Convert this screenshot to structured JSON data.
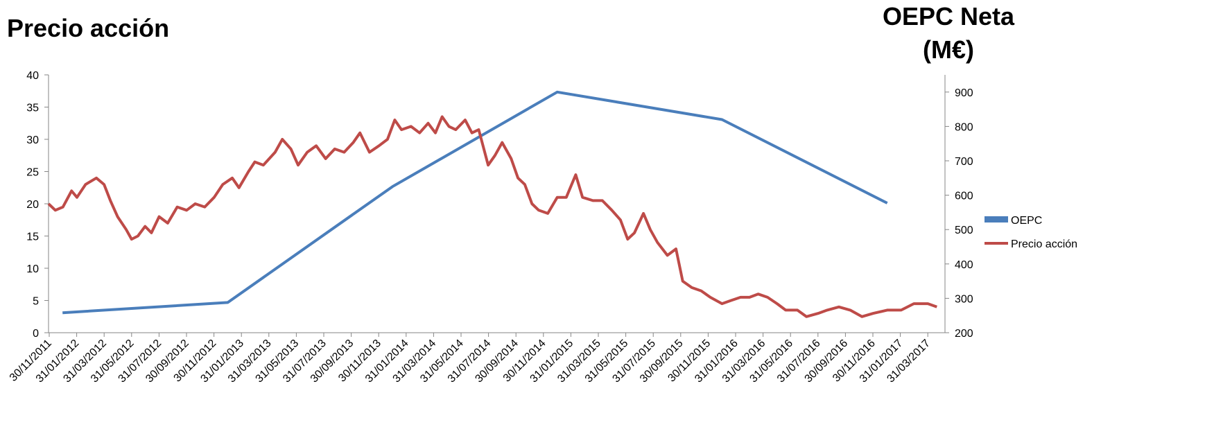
{
  "titles": {
    "left": "Precio acción",
    "right_line1": "OEPC Neta",
    "right_line2": "(M€)"
  },
  "chart_data": {
    "type": "line",
    "grid": false,
    "legend_position": "right",
    "y_left": {
      "range": [
        0,
        40
      ],
      "ticks": [
        0,
        5,
        10,
        15,
        20,
        25,
        30,
        35,
        40
      ]
    },
    "y_right": {
      "range": [
        200,
        950
      ],
      "ticks": [
        200,
        300,
        400,
        500,
        600,
        700,
        800,
        900
      ]
    },
    "x_tick_labels": [
      "30/11/2011",
      "31/01/2012",
      "31/03/2012",
      "31/05/2012",
      "31/07/2012",
      "30/09/2012",
      "30/11/2012",
      "31/01/2013",
      "31/03/2013",
      "31/05/2013",
      "31/07/2013",
      "30/09/2013",
      "30/11/2013",
      "31/01/2014",
      "31/03/2014",
      "31/05/2014",
      "31/07/2014",
      "30/09/2014",
      "30/11/2014",
      "31/01/2015",
      "31/03/2015",
      "31/05/2015",
      "31/07/2015",
      "30/09/2015",
      "30/11/2015",
      "31/01/2016",
      "31/03/2016",
      "31/05/2016",
      "31/07/2016",
      "30/09/2016",
      "30/11/2016",
      "31/01/2017",
      "31/03/2017"
    ],
    "series": [
      {
        "name": "OEPC",
        "axis": "right",
        "color": "#4a7ebb",
        "points": [
          {
            "x": "31/12/2011",
            "y": 258
          },
          {
            "x": "31/12/2012",
            "y": 288
          },
          {
            "x": "31/12/2013",
            "y": 625
          },
          {
            "x": "31/12/2014",
            "y": 900
          },
          {
            "x": "31/12/2015",
            "y": 820
          },
          {
            "x": "31/12/2016",
            "y": 577
          }
        ]
      },
      {
        "name": "Precio acción",
        "axis": "left",
        "color": "#be4b48",
        "points": [
          {
            "x": "30/11/2011",
            "y": 20
          },
          {
            "x": "15/12/2011",
            "y": 19
          },
          {
            "x": "01/01/2012",
            "y": 19.5
          },
          {
            "x": "20/01/2012",
            "y": 22
          },
          {
            "x": "01/02/2012",
            "y": 21
          },
          {
            "x": "20/02/2012",
            "y": 23
          },
          {
            "x": "15/03/2012",
            "y": 24
          },
          {
            "x": "01/04/2012",
            "y": 23
          },
          {
            "x": "15/04/2012",
            "y": 20.5
          },
          {
            "x": "01/05/2012",
            "y": 18
          },
          {
            "x": "20/05/2012",
            "y": 16
          },
          {
            "x": "01/06/2012",
            "y": 14.5
          },
          {
            "x": "15/06/2012",
            "y": 15
          },
          {
            "x": "01/07/2012",
            "y": 16.5
          },
          {
            "x": "15/07/2012",
            "y": 15.5
          },
          {
            "x": "01/08/2012",
            "y": 18
          },
          {
            "x": "20/08/2012",
            "y": 17
          },
          {
            "x": "10/09/2012",
            "y": 19.5
          },
          {
            "x": "01/10/2012",
            "y": 19
          },
          {
            "x": "20/10/2012",
            "y": 20
          },
          {
            "x": "10/11/2012",
            "y": 19.5
          },
          {
            "x": "01/12/2012",
            "y": 21
          },
          {
            "x": "20/12/2012",
            "y": 23
          },
          {
            "x": "10/01/2013",
            "y": 24
          },
          {
            "x": "25/01/2013",
            "y": 22.5
          },
          {
            "x": "15/02/2013",
            "y": 25
          },
          {
            "x": "01/03/2013",
            "y": 26.5
          },
          {
            "x": "20/03/2013",
            "y": 26
          },
          {
            "x": "15/04/2013",
            "y": 28
          },
          {
            "x": "01/05/2013",
            "y": 30
          },
          {
            "x": "20/05/2013",
            "y": 28.5
          },
          {
            "x": "05/06/2013",
            "y": 26
          },
          {
            "x": "25/06/2013",
            "y": 28
          },
          {
            "x": "15/07/2013",
            "y": 29
          },
          {
            "x": "05/08/2013",
            "y": 27
          },
          {
            "x": "25/08/2013",
            "y": 28.5
          },
          {
            "x": "15/09/2013",
            "y": 28
          },
          {
            "x": "05/10/2013",
            "y": 29.5
          },
          {
            "x": "20/10/2013",
            "y": 31
          },
          {
            "x": "10/11/2013",
            "y": 28
          },
          {
            "x": "01/12/2013",
            "y": 29
          },
          {
            "x": "20/12/2013",
            "y": 30
          },
          {
            "x": "05/01/2014",
            "y": 33
          },
          {
            "x": "20/01/2014",
            "y": 31.5
          },
          {
            "x": "10/02/2014",
            "y": 32
          },
          {
            "x": "01/03/2014",
            "y": 31
          },
          {
            "x": "20/03/2014",
            "y": 32.5
          },
          {
            "x": "05/04/2014",
            "y": 31
          },
          {
            "x": "20/04/2014",
            "y": 33.5
          },
          {
            "x": "05/05/2014",
            "y": 32
          },
          {
            "x": "20/05/2014",
            "y": 31.5
          },
          {
            "x": "10/06/2014",
            "y": 33
          },
          {
            "x": "25/06/2014",
            "y": 31
          },
          {
            "x": "10/07/2014",
            "y": 31.5
          },
          {
            "x": "31/07/2014",
            "y": 26
          },
          {
            "x": "15/08/2014",
            "y": 27.5
          },
          {
            "x": "31/08/2014",
            "y": 29.5
          },
          {
            "x": "20/09/2014",
            "y": 27
          },
          {
            "x": "05/10/2014",
            "y": 24
          },
          {
            "x": "20/10/2014",
            "y": 23
          },
          {
            "x": "05/11/2014",
            "y": 20
          },
          {
            "x": "20/11/2014",
            "y": 19
          },
          {
            "x": "10/12/2014",
            "y": 18.5
          },
          {
            "x": "31/12/2014",
            "y": 21
          },
          {
            "x": "20/01/2015",
            "y": 21
          },
          {
            "x": "10/02/2015",
            "y": 24.5
          },
          {
            "x": "25/02/2015",
            "y": 21
          },
          {
            "x": "20/03/2015",
            "y": 20.5
          },
          {
            "x": "10/04/2015",
            "y": 20.5
          },
          {
            "x": "01/05/2015",
            "y": 19
          },
          {
            "x": "20/05/2015",
            "y": 17.5
          },
          {
            "x": "05/06/2015",
            "y": 14.5
          },
          {
            "x": "20/06/2015",
            "y": 15.5
          },
          {
            "x": "10/07/2015",
            "y": 18.5
          },
          {
            "x": "25/07/2015",
            "y": 16
          },
          {
            "x": "10/08/2015",
            "y": 14
          },
          {
            "x": "01/09/2015",
            "y": 12
          },
          {
            "x": "20/09/2015",
            "y": 13
          },
          {
            "x": "05/10/2015",
            "y": 8
          },
          {
            "x": "25/10/2015",
            "y": 7
          },
          {
            "x": "15/11/2015",
            "y": 6.5
          },
          {
            "x": "05/12/2015",
            "y": 5.5
          },
          {
            "x": "31/12/2015",
            "y": 4.5
          },
          {
            "x": "20/01/2016",
            "y": 5
          },
          {
            "x": "10/02/2016",
            "y": 5.5
          },
          {
            "x": "01/03/2016",
            "y": 5.5
          },
          {
            "x": "20/03/2016",
            "y": 6
          },
          {
            "x": "10/04/2016",
            "y": 5.5
          },
          {
            "x": "01/05/2016",
            "y": 4.5
          },
          {
            "x": "20/05/2016",
            "y": 3.5
          },
          {
            "x": "15/06/2016",
            "y": 3.5
          },
          {
            "x": "05/07/2016",
            "y": 2.5
          },
          {
            "x": "31/07/2016",
            "y": 3
          },
          {
            "x": "20/08/2016",
            "y": 3.5
          },
          {
            "x": "15/09/2016",
            "y": 4
          },
          {
            "x": "10/10/2016",
            "y": 3.5
          },
          {
            "x": "05/11/2016",
            "y": 2.5
          },
          {
            "x": "30/11/2016",
            "y": 3
          },
          {
            "x": "31/12/2016",
            "y": 3.5
          },
          {
            "x": "31/01/2017",
            "y": 3.5
          },
          {
            "x": "28/02/2017",
            "y": 4.5
          },
          {
            "x": "31/03/2017",
            "y": 4.5
          },
          {
            "x": "20/04/2017",
            "y": 4
          }
        ]
      }
    ]
  }
}
